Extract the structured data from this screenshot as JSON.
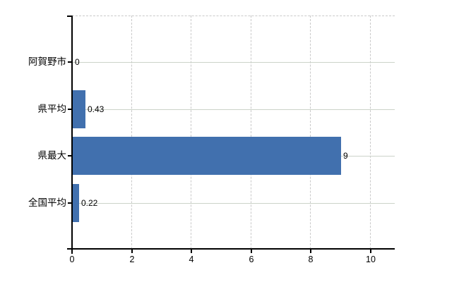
{
  "chart_data": {
    "type": "bar",
    "orientation": "horizontal",
    "title": "",
    "xlabel": "",
    "ylabel": "",
    "categories": [
      "阿賀野市",
      "県平均",
      "県最大",
      "全国平均"
    ],
    "values": [
      0,
      0.43,
      9,
      0.22
    ],
    "value_labels": [
      "0",
      "0.43",
      "9",
      "0.22"
    ],
    "x_ticks": [
      0,
      2,
      4,
      6,
      8,
      10
    ],
    "x_tick_labels": [
      "0",
      "2",
      "4",
      "6",
      "8",
      "10"
    ],
    "xlim": [
      0,
      10.8
    ],
    "legend": "none",
    "grid": {
      "vertical": "dashed",
      "horizontal": "solid",
      "top_border": "dashed"
    },
    "colors": {
      "bar": "#4170ae",
      "axis": "#000000",
      "horizontal_gridline": "#ccd3c9",
      "vertical_gridline": "#c9c9c9",
      "text": "#000000",
      "background": "#ffffff"
    }
  }
}
